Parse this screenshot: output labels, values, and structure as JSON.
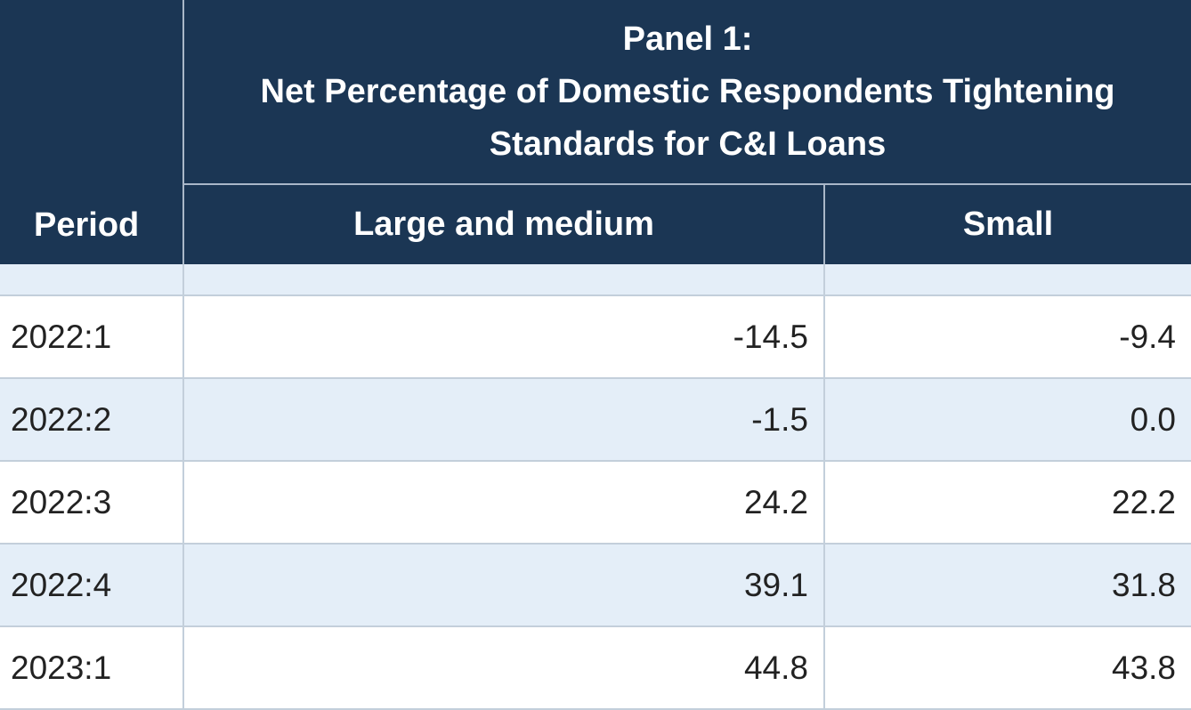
{
  "table": {
    "panel_title_line1": "Panel 1:",
    "panel_title_line2": "Net Percentage of Domestic Respondents Tightening",
    "panel_title_line3": "Standards for C&I Loans",
    "period_header": "Period",
    "columns": [
      "Large and medium",
      "Small"
    ],
    "rows": [
      {
        "period": "2022:1",
        "large_medium": "-14.5",
        "small": "-9.4"
      },
      {
        "period": "2022:2",
        "large_medium": "-1.5",
        "small": "0.0"
      },
      {
        "period": "2022:3",
        "large_medium": "24.2",
        "small": "22.2"
      },
      {
        "period": "2022:4",
        "large_medium": "39.1",
        "small": "31.8"
      },
      {
        "period": "2023:1",
        "large_medium": "44.8",
        "small": "43.8"
      }
    ]
  },
  "colors": {
    "header_bg": "#1b3654",
    "header_text": "#ffffff",
    "row_alt_bg": "#e4eef8",
    "row_bg": "#ffffff"
  }
}
